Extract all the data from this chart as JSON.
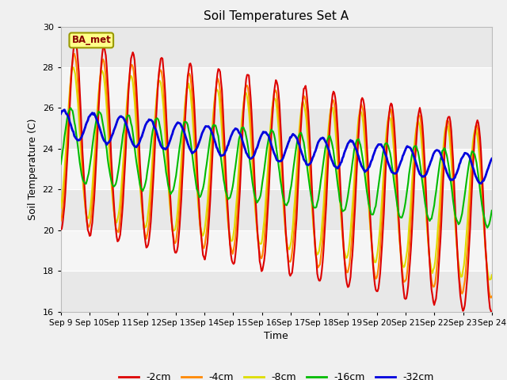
{
  "title": "Soil Temperatures Set A",
  "xlabel": "Time",
  "ylabel": "Soil Temperature (C)",
  "ylim": [
    16,
    30
  ],
  "yticks": [
    16,
    18,
    20,
    22,
    24,
    26,
    28,
    30
  ],
  "x_labels": [
    "Sep 9",
    "Sep 10",
    "Sep 11",
    "Sep 12",
    "Sep 13",
    "Sep 14",
    "Sep 15",
    "Sep 16",
    "Sep 17",
    "Sep 18",
    "Sep 19",
    "Sep 20",
    "Sep 21",
    "Sep 22",
    "Sep 23",
    "Sep 24"
  ],
  "station_label": "BA_met",
  "line_colors": {
    "-2cm": "#dd0000",
    "-4cm": "#ff8800",
    "-8cm": "#dddd00",
    "-16cm": "#00bb00",
    "-32cm": "#0000dd"
  },
  "bg_color": "#e8e8e8",
  "band_colors": [
    "#e8e8e8",
    "#f5f5f5"
  ],
  "grid_color": "#ffffff"
}
